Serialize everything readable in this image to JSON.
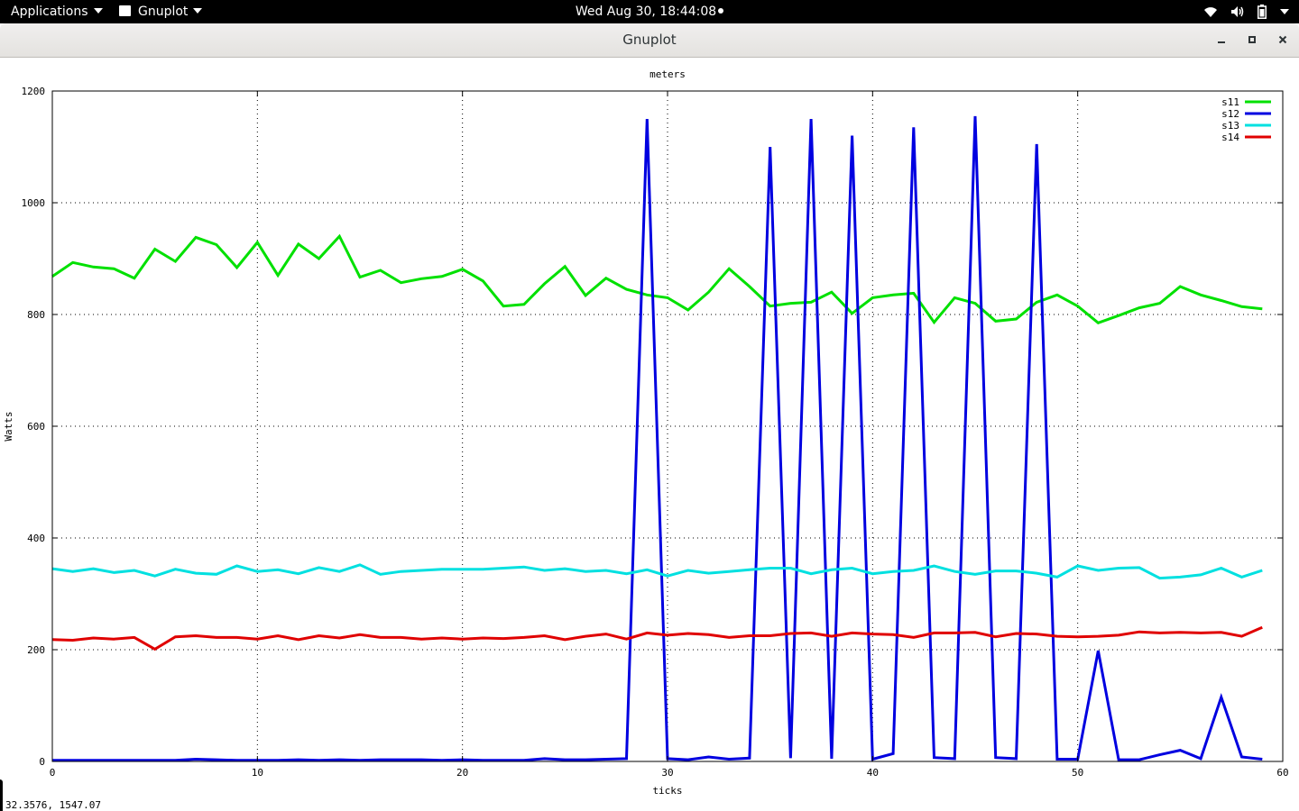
{
  "topbar": {
    "applications_label": "Applications",
    "app_label": "Gnuplot",
    "clock": "Wed Aug 30, 18:44:08"
  },
  "window": {
    "title": "Gnuplot"
  },
  "status": {
    "coords": "32.3576,  1547.07"
  },
  "chart_data": {
    "type": "line",
    "title": "meters",
    "xlabel": "ticks",
    "ylabel": "Watts",
    "xlim": [
      0,
      60
    ],
    "ylim": [
      0,
      1200
    ],
    "xticks": [
      0,
      10,
      20,
      30,
      40,
      50,
      60
    ],
    "yticks": [
      0,
      200,
      400,
      600,
      800,
      1000,
      1200
    ],
    "grid": true,
    "legend": "top-right",
    "x": [
      0,
      1,
      2,
      3,
      4,
      5,
      6,
      7,
      8,
      9,
      10,
      11,
      12,
      13,
      14,
      15,
      16,
      17,
      18,
      19,
      20,
      21,
      22,
      23,
      24,
      25,
      26,
      27,
      28,
      29,
      30,
      31,
      32,
      33,
      34,
      35,
      36,
      37,
      38,
      39,
      40,
      41,
      42,
      43,
      44,
      45,
      46,
      47,
      48,
      49,
      50,
      51,
      52,
      53,
      54,
      55,
      56,
      57,
      58,
      59
    ],
    "series": [
      {
        "name": "s11",
        "color": "#00e000",
        "values": [
          868,
          893,
          885,
          882,
          865,
          917,
          895,
          938,
          925,
          884,
          929,
          870,
          926,
          900,
          940,
          867,
          879,
          857,
          864,
          868,
          881,
          860,
          815,
          818,
          855,
          886,
          834,
          865,
          845,
          835,
          830,
          808,
          840,
          882,
          850,
          815,
          820,
          822,
          840,
          802,
          830,
          835,
          838,
          786,
          830,
          820,
          788,
          792,
          822,
          835,
          815,
          785,
          798,
          812,
          820,
          850,
          835,
          825,
          814,
          810
        ]
      },
      {
        "name": "s12",
        "color": "#0000e0",
        "values": [
          2,
          2,
          2,
          2,
          2,
          2,
          2,
          4,
          3,
          2,
          2,
          2,
          3,
          2,
          3,
          2,
          3,
          3,
          3,
          2,
          3,
          2,
          2,
          2,
          5,
          3,
          3,
          4,
          5,
          1150,
          5,
          3,
          8,
          4,
          6,
          1100,
          6,
          1150,
          5,
          1120,
          4,
          14,
          1135,
          7,
          5,
          1155,
          7,
          5,
          1105,
          4,
          4,
          198,
          3,
          3,
          12,
          20,
          5,
          115,
          8,
          4
        ]
      },
      {
        "name": "s13",
        "color": "#00e0e0",
        "values": [
          345,
          340,
          345,
          338,
          342,
          332,
          344,
          337,
          335,
          350,
          340,
          343,
          336,
          347,
          340,
          352,
          335,
          340,
          342,
          344,
          344,
          344,
          346,
          348,
          342,
          345,
          340,
          342,
          336,
          343,
          332,
          342,
          337,
          340,
          343,
          346,
          346,
          336,
          343,
          346,
          336,
          340,
          342,
          350,
          340,
          335,
          341,
          341,
          337,
          330,
          350,
          342,
          346,
          347,
          328,
          330,
          334,
          346,
          330,
          342
        ]
      },
      {
        "name": "s14",
        "color": "#e00000",
        "values": [
          218,
          217,
          221,
          219,
          222,
          201,
          223,
          225,
          222,
          222,
          219,
          225,
          218,
          225,
          221,
          227,
          222,
          222,
          219,
          221,
          219,
          221,
          220,
          222,
          225,
          218,
          224,
          228,
          219,
          230,
          226,
          229,
          227,
          222,
          225,
          225,
          229,
          230,
          224,
          230,
          228,
          227,
          222,
          230,
          230,
          231,
          223,
          229,
          228,
          224,
          223,
          224,
          226,
          232,
          230,
          231,
          230,
          231,
          224,
          240
        ]
      }
    ]
  },
  "colors": {
    "topbar": "#000000",
    "titlebar": "#e8e6e3"
  },
  "icons": [
    "wifi-icon",
    "volume-icon",
    "battery-icon",
    "power-menu-icon",
    "minimize-icon",
    "maximize-icon",
    "close-icon"
  ]
}
